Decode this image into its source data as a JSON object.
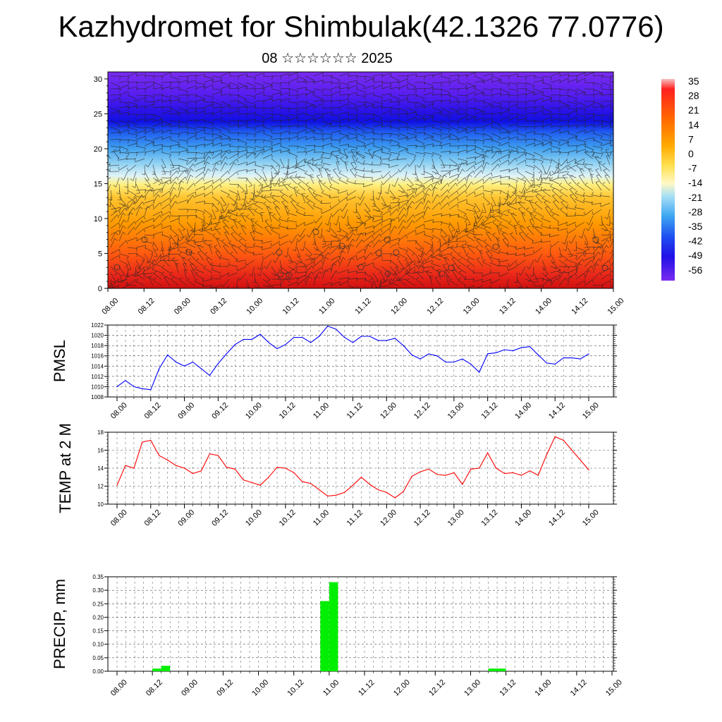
{
  "title": "Kazhydromet for Shimbulak(42.1326 77.0776)",
  "subtitle": "08 ☆☆☆☆☆☆ 2025",
  "colorbar": {
    "labels": [
      "35",
      "28",
      "21",
      "14",
      "7",
      "0",
      "-7",
      "-14",
      "-21",
      "-28",
      "-35",
      "-42",
      "-49",
      "-56"
    ]
  },
  "chart_data": [
    {
      "type": "heatmap",
      "description_role": "vertical temperature cross-section with wind barbs",
      "x_ticks": [
        "08.00",
        "08.12",
        "09.00",
        "09.12",
        "10.00",
        "10.12",
        "11.00",
        "11.12",
        "12.00",
        "12.12",
        "13.00",
        "13.12",
        "14.00",
        "14.12",
        "15.00"
      ],
      "y_ticks": [
        "0",
        "5",
        "10",
        "15",
        "20",
        "25",
        "30"
      ],
      "ylim": [
        0,
        31
      ],
      "temperature_by_level": [
        {
          "level": 0,
          "t": 28
        },
        {
          "level": 5,
          "t": 21
        },
        {
          "level": 10,
          "t": 7
        },
        {
          "level": 14,
          "t": -3
        },
        {
          "level": 17,
          "t": -25
        },
        {
          "level": 20,
          "t": -38
        },
        {
          "level": 23.5,
          "t": -56
        },
        {
          "level": 27,
          "t": -52
        },
        {
          "level": 31,
          "t": -60
        }
      ],
      "colors": {
        "scale": [
          "#8a1a1a",
          "#e41a1c",
          "#ff6a00",
          "#ffb000",
          "#ffe14a",
          "#fff5b0",
          "#bfe6f7",
          "#54b6f0",
          "#1e78f0",
          "#1414e6",
          "#4b1af0",
          "#7a2af0"
        ]
      }
    },
    {
      "type": "line",
      "ylabel": "PMSL",
      "x_ticks": [
        "08.00",
        "08.12",
        "09.00",
        "09.12",
        "10.00",
        "10.12",
        "11.00",
        "11.12",
        "12.00",
        "12.12",
        "13.00",
        "13.12",
        "14.00",
        "14.12",
        "15.00"
      ],
      "y_ticks": [
        "1008",
        "1010",
        "1012",
        "1014",
        "1016",
        "1018",
        "1020",
        "1022"
      ],
      "ylim": [
        1008,
        1022
      ],
      "color": "#0000ff",
      "values": [
        1010.0,
        1011.2,
        1010.0,
        1009.6,
        1009.4,
        1013.5,
        1016.2,
        1014.8,
        1014.0,
        1014.8,
        1013.5,
        1012.2,
        1014.5,
        1016.4,
        1018.2,
        1019.2,
        1019.2,
        1020.2,
        1018.6,
        1017.4,
        1018.2,
        1019.6,
        1019.6,
        1018.6,
        1019.8,
        1021.8,
        1021.2,
        1019.6,
        1018.6,
        1019.8,
        1019.8,
        1019.0,
        1019.0,
        1019.4,
        1018.0,
        1016.2,
        1015.4,
        1016.4,
        1016.0,
        1014.8,
        1014.8,
        1015.4,
        1014.4,
        1012.8,
        1016.4,
        1016.6,
        1017.2,
        1017.0,
        1017.6,
        1017.8,
        1016.2,
        1014.6,
        1014.4,
        1015.6,
        1015.6,
        1015.4,
        1016.4
      ]
    },
    {
      "type": "line",
      "ylabel": "TEMP at 2 M",
      "x_ticks": [
        "08.00",
        "08.12",
        "09.00",
        "09.12",
        "10.00",
        "10.12",
        "11.00",
        "11.12",
        "12.00",
        "12.12",
        "13.00",
        "13.12",
        "14.00",
        "14.12",
        "15.00"
      ],
      "y_ticks": [
        "10",
        "12",
        "14",
        "16",
        "18"
      ],
      "ylim": [
        10,
        18
      ],
      "color": "#ff0000",
      "values": [
        12.1,
        14.3,
        14.0,
        16.9,
        17.1,
        15.4,
        14.9,
        14.3,
        14.0,
        13.4,
        13.7,
        15.6,
        15.4,
        14.1,
        13.9,
        12.7,
        12.4,
        12.1,
        13.0,
        14.1,
        14.0,
        13.5,
        12.5,
        12.3,
        11.6,
        10.9,
        11.0,
        11.3,
        12.1,
        13.0,
        12.2,
        11.6,
        11.3,
        10.7,
        11.4,
        13.1,
        13.6,
        13.9,
        13.3,
        13.2,
        13.5,
        12.2,
        13.9,
        14.0,
        15.7,
        14.0,
        13.4,
        13.5,
        13.2,
        13.7,
        13.2,
        15.5,
        17.5,
        17.1,
        16.0,
        14.9,
        13.8
      ]
    },
    {
      "type": "bar",
      "ylabel": "PRECIP, mm",
      "x_ticks": [
        "08.00",
        "08.12",
        "09.00",
        "09.12",
        "10.00",
        "10.12",
        "11.00",
        "11.12",
        "12.00",
        "12.12",
        "13.00",
        "13.12",
        "14.00",
        "14.12",
        "15.00"
      ],
      "y_ticks": [
        "0.00",
        "0.05",
        "0.10",
        "0.15",
        "0.20",
        "0.25",
        "0.30",
        "0.35"
      ],
      "ylim": [
        0,
        0.35
      ],
      "color": "#00ee00",
      "bars": [
        {
          "hour": 15,
          "value": 0.01
        },
        {
          "hour": 18,
          "value": 0.02
        },
        {
          "hour": 72,
          "value": 0.26
        },
        {
          "hour": 75,
          "value": 0.33
        },
        {
          "hour": 129,
          "value": 0.01
        },
        {
          "hour": 132,
          "value": 0.01
        }
      ]
    }
  ]
}
